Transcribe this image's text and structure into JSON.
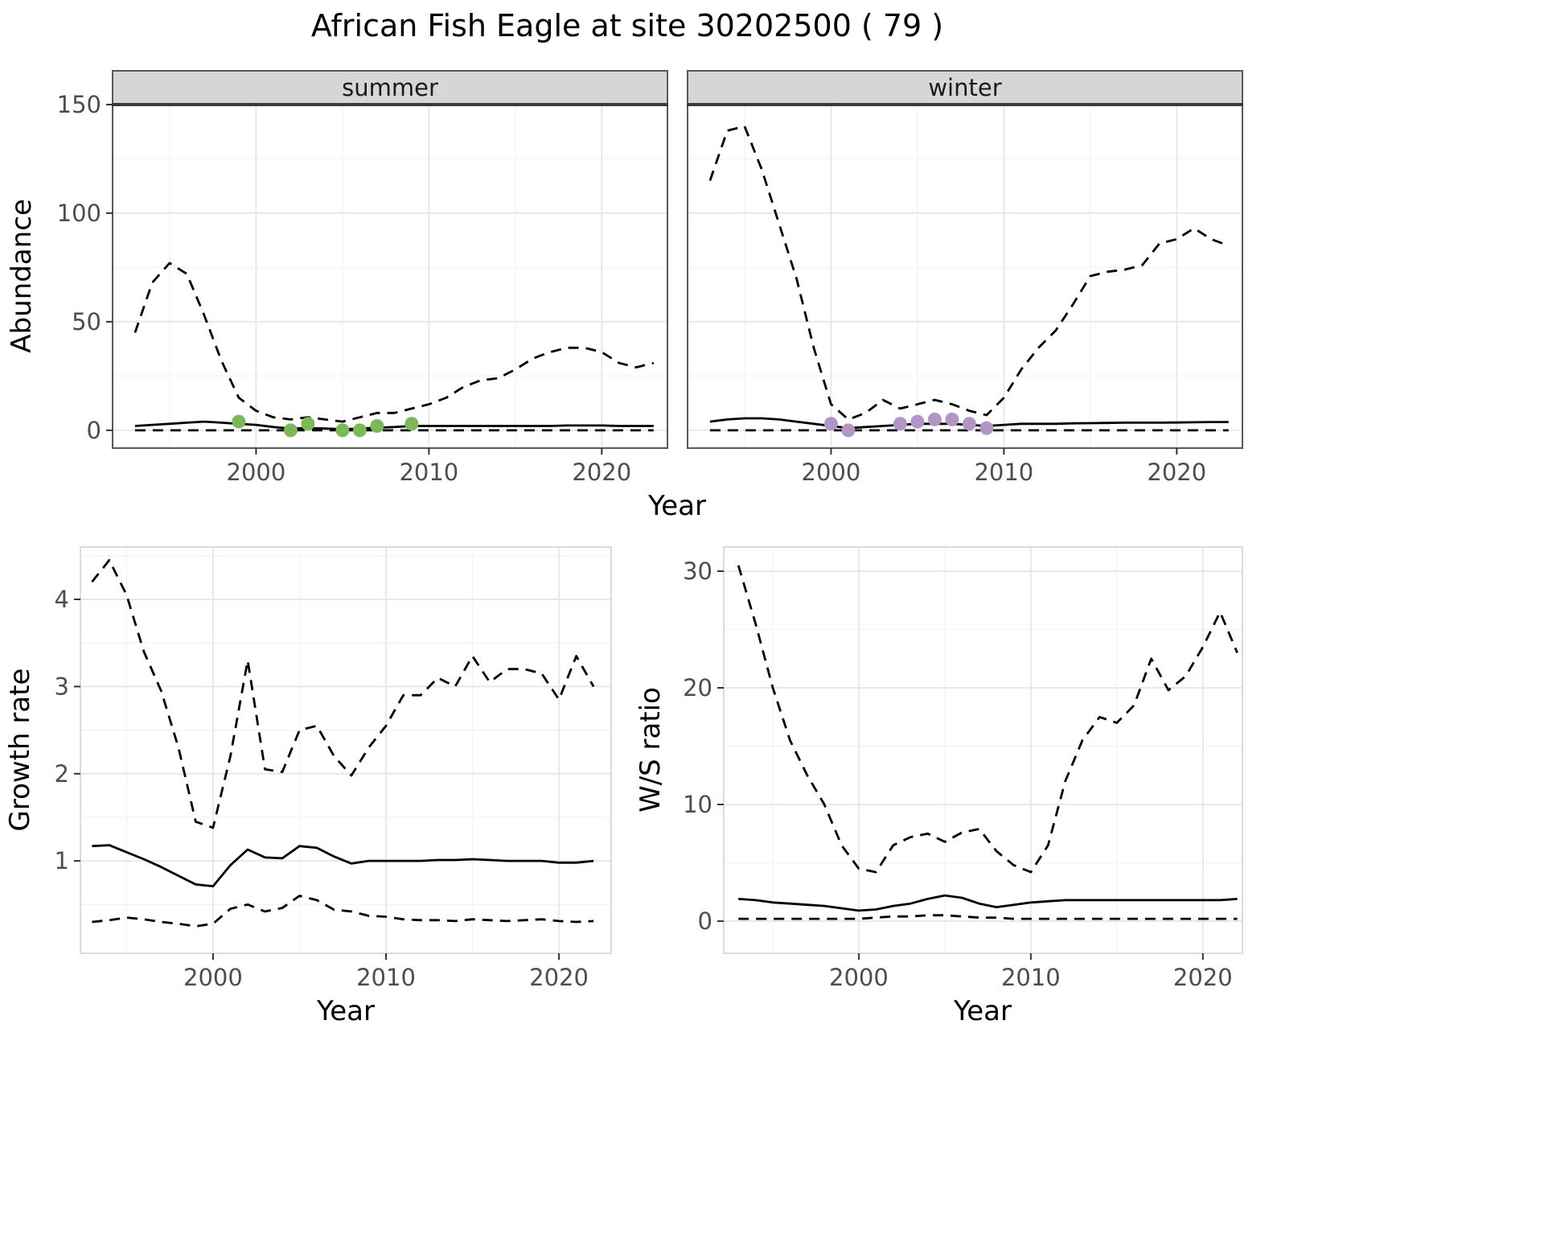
{
  "title": "African Fish Eagle at site 30202500 ( 79 )",
  "styles": {
    "summer_point_color": "#7CB956",
    "winter_point_color": "#B294C7",
    "line_color": "#000000",
    "strip_fill": "#D6D6D6",
    "strip_text_color": "#1A1A1A",
    "grid_major_color": "#E8E8E8",
    "grid_minor_color": "#F3F3F3",
    "panel_border_color": "#595959",
    "bottom_panel_border_color": "#CFCFCF",
    "tick_color": "#333333",
    "axis_text_color": "#4D4D4D",
    "axis_title_color": "#000000"
  },
  "chart_data": [
    {
      "id": "abundance-summer",
      "type": "line",
      "facet_label": "summer",
      "xlabel": "Year",
      "ylabel": "Abundance",
      "xlim": [
        1991.7,
        2023.8
      ],
      "ylim": [
        -8.2,
        150
      ],
      "xticks": [
        2000,
        2010,
        2020
      ],
      "yticks": [
        0,
        50,
        100,
        150
      ],
      "grid": "major+minor",
      "legend": "none",
      "x": [
        1993,
        1994,
        1995,
        1996,
        1997,
        1998,
        1999,
        2000,
        2001,
        2002,
        2003,
        2004,
        2005,
        2006,
        2007,
        2008,
        2009,
        2010,
        2011,
        2012,
        2013,
        2014,
        2015,
        2016,
        2017,
        2018,
        2019,
        2020,
        2021,
        2022,
        2023
      ],
      "series": [
        {
          "name": "upper-ci",
          "style": "dashed",
          "values": [
            45,
            68,
            77,
            72,
            53,
            32,
            15,
            9,
            6,
            5,
            6,
            5,
            4,
            6,
            8,
            8,
            10,
            12,
            15,
            20,
            23,
            24,
            28,
            33,
            36,
            38,
            38,
            36,
            31,
            29,
            31
          ]
        },
        {
          "name": "estimate",
          "style": "solid",
          "values": [
            2,
            2.5,
            3,
            3.5,
            4,
            3.5,
            3,
            2.5,
            1.5,
            0.8,
            1,
            0.8,
            0.5,
            0.8,
            1.2,
            1.5,
            2,
            2,
            2,
            2,
            2,
            2,
            2,
            2,
            2,
            2.2,
            2.2,
            2.2,
            2,
            2,
            2
          ]
        },
        {
          "name": "lower-ci",
          "style": "dashed",
          "values": [
            0,
            0,
            0,
            0,
            0,
            0,
            0,
            0,
            0,
            0,
            0,
            0,
            0,
            0,
            0,
            0,
            0,
            0,
            0,
            0,
            0,
            0,
            0,
            0,
            0,
            0,
            0,
            0,
            0,
            0,
            0
          ]
        }
      ],
      "points": {
        "name": "observed-summer",
        "color_key": "summer_point_color",
        "x": [
          1999,
          2002,
          2003,
          2005,
          2006,
          2007,
          2009
        ],
        "y": [
          4,
          0,
          3,
          0,
          0,
          2,
          3
        ]
      }
    },
    {
      "id": "abundance-winter",
      "type": "line",
      "facet_label": "winter",
      "xlabel": "Year",
      "ylabel": "Abundance",
      "xlim": [
        1991.7,
        2023.8
      ],
      "ylim": [
        -8.2,
        150
      ],
      "xticks": [
        2000,
        2010,
        2020
      ],
      "yticks": [
        0,
        50,
        100,
        150
      ],
      "grid": "major+minor",
      "legend": "none",
      "x": [
        1993,
        1994,
        1995,
        1996,
        1997,
        1998,
        1999,
        2000,
        2001,
        2002,
        2003,
        2004,
        2005,
        2006,
        2007,
        2008,
        2009,
        2010,
        2011,
        2012,
        2013,
        2014,
        2015,
        2016,
        2017,
        2018,
        2019,
        2020,
        2021,
        2022,
        2023
      ],
      "series": [
        {
          "name": "upper-ci",
          "style": "dashed",
          "values": [
            115,
            138,
            140,
            120,
            95,
            70,
            38,
            12,
            5,
            8,
            14,
            10,
            12,
            14,
            12,
            9,
            7,
            15,
            28,
            38,
            46,
            58,
            71,
            73,
            74,
            76,
            86,
            88,
            93,
            88,
            85
          ]
        },
        {
          "name": "estimate",
          "style": "solid",
          "values": [
            4,
            5,
            5.5,
            5.5,
            5,
            4,
            3,
            2,
            1,
            1.5,
            2,
            2.5,
            3,
            3,
            3,
            2.5,
            2,
            2.5,
            3,
            3,
            3,
            3.2,
            3.3,
            3.4,
            3.5,
            3.5,
            3.5,
            3.6,
            3.7,
            3.8,
            3.8
          ]
        },
        {
          "name": "lower-ci",
          "style": "dashed",
          "values": [
            0,
            0,
            0,
            0,
            0,
            0,
            0,
            0,
            0,
            0,
            0,
            0,
            0,
            0,
            0,
            0,
            0,
            0,
            0,
            0,
            0,
            0,
            0,
            0,
            0,
            0,
            0,
            0,
            0,
            0,
            0
          ]
        }
      ],
      "points": {
        "name": "observed-winter",
        "color_key": "winter_point_color",
        "x": [
          2000,
          2001,
          2004,
          2005,
          2006,
          2007,
          2008,
          2009
        ],
        "y": [
          3,
          0,
          3,
          4,
          5,
          5,
          3,
          1
        ]
      }
    },
    {
      "id": "growth-rate",
      "type": "line",
      "facet_label": "",
      "xlabel": "Year",
      "ylabel": "Growth rate",
      "xlim": [
        1992.33,
        2023.02
      ],
      "ylim": [
        -0.06,
        4.6
      ],
      "xticks": [
        2000,
        2010,
        2020
      ],
      "yticks": [
        1,
        2,
        3,
        4
      ],
      "grid": "major+minor",
      "legend": "none",
      "x": [
        1993,
        1994,
        1995,
        1996,
        1997,
        1998,
        1999,
        2000,
        2001,
        2002,
        2003,
        2004,
        2005,
        2006,
        2007,
        2008,
        2009,
        2010,
        2011,
        2012,
        2013,
        2014,
        2015,
        2016,
        2017,
        2018,
        2019,
        2020,
        2021,
        2022
      ],
      "series": [
        {
          "name": "upper-ci",
          "style": "dashed",
          "values": [
            4.2,
            4.45,
            4.05,
            3.4,
            2.95,
            2.3,
            1.45,
            1.38,
            2.2,
            3.3,
            2.05,
            2.02,
            2.5,
            2.55,
            2.2,
            1.98,
            2.3,
            2.55,
            2.9,
            2.9,
            3.1,
            3.0,
            3.35,
            3.05,
            3.2,
            3.2,
            3.15,
            2.85,
            3.35,
            3.0
          ]
        },
        {
          "name": "estimate",
          "style": "solid",
          "values": [
            1.17,
            1.18,
            1.1,
            1.02,
            0.93,
            0.83,
            0.73,
            0.71,
            0.95,
            1.13,
            1.04,
            1.03,
            1.17,
            1.15,
            1.05,
            0.97,
            1.0,
            1.0,
            1.0,
            1.0,
            1.01,
            1.01,
            1.02,
            1.01,
            1.0,
            1.0,
            1.0,
            0.98,
            0.98,
            1.0
          ]
        },
        {
          "name": "lower-ci",
          "style": "dashed",
          "values": [
            0.3,
            0.32,
            0.35,
            0.33,
            0.3,
            0.28,
            0.25,
            0.28,
            0.45,
            0.5,
            0.42,
            0.46,
            0.6,
            0.55,
            0.44,
            0.42,
            0.37,
            0.36,
            0.33,
            0.32,
            0.32,
            0.31,
            0.33,
            0.32,
            0.31,
            0.32,
            0.33,
            0.31,
            0.3,
            0.31
          ]
        }
      ],
      "points": null
    },
    {
      "id": "ws-ratio",
      "type": "line",
      "facet_label": "",
      "xlabel": "Year",
      "ylabel": "W/S ratio",
      "xlim": [
        1992.15,
        2022.3
      ],
      "ylim": [
        -2.76,
        32.07
      ],
      "xticks": [
        2000,
        2010,
        2020
      ],
      "yticks": [
        0,
        10,
        20,
        30
      ],
      "grid": "major+minor",
      "legend": "none",
      "x": [
        1993,
        1994,
        1995,
        1996,
        1997,
        1998,
        1999,
        2000,
        2001,
        2002,
        2003,
        2004,
        2005,
        2006,
        2007,
        2008,
        2009,
        2010,
        2011,
        2012,
        2013,
        2014,
        2015,
        2016,
        2017,
        2018,
        2019,
        2020,
        2021,
        2022
      ],
      "series": [
        {
          "name": "upper-ci",
          "style": "dashed",
          "values": [
            30.5,
            25.5,
            20,
            15.5,
            12.5,
            10,
            6.5,
            4.5,
            4.2,
            6.5,
            7.2,
            7.5,
            6.8,
            7.6,
            7.9,
            6,
            4.8,
            4.2,
            6.5,
            12,
            15.5,
            17.5,
            17,
            18.5,
            22.5,
            19.8,
            21,
            23.5,
            26.5,
            23
          ]
        },
        {
          "name": "estimate",
          "style": "solid",
          "values": [
            1.9,
            1.8,
            1.6,
            1.5,
            1.4,
            1.3,
            1.1,
            0.9,
            1.0,
            1.3,
            1.5,
            1.9,
            2.2,
            2.0,
            1.5,
            1.2,
            1.4,
            1.6,
            1.7,
            1.8,
            1.8,
            1.8,
            1.8,
            1.8,
            1.8,
            1.8,
            1.8,
            1.8,
            1.8,
            1.9
          ]
        },
        {
          "name": "lower-ci",
          "style": "dashed",
          "values": [
            0.2,
            0.2,
            0.2,
            0.2,
            0.2,
            0.2,
            0.2,
            0.2,
            0.3,
            0.4,
            0.4,
            0.5,
            0.5,
            0.4,
            0.3,
            0.3,
            0.2,
            0.2,
            0.2,
            0.2,
            0.2,
            0.2,
            0.2,
            0.2,
            0.2,
            0.2,
            0.2,
            0.2,
            0.2,
            0.2
          ]
        }
      ],
      "points": null
    }
  ]
}
